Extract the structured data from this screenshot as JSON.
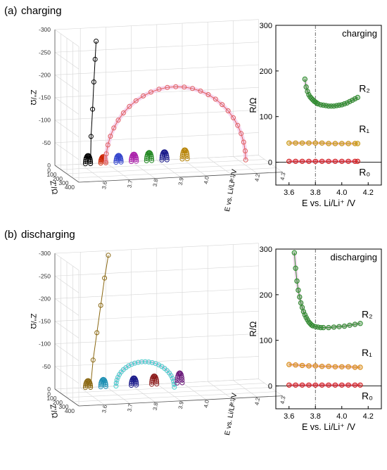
{
  "chart_data": [
    {
      "panel": "(a)",
      "title": "charging",
      "type": "scatter",
      "projection": "3d",
      "axes": {
        "x": {
          "label": "Z'/Ω",
          "ticks": [
            "0",
            "100",
            "200",
            "300",
            "400"
          ]
        },
        "y": {
          "label": "E vs. Li/Li⁺ /V",
          "ticks": [
            "3.6",
            "3.7",
            "3.8",
            "3.9",
            "4.0",
            "4.1",
            "4.2",
            "4.3"
          ]
        },
        "z": {
          "label": "Z''/Ω",
          "ticks": [
            "0",
            "-50",
            "-100",
            "-150",
            "-200",
            "-250",
            "-300"
          ]
        }
      },
      "series": [
        {
          "color": "#000000",
          "E": 3.62,
          "arc_width": 20,
          "arc_height": 18,
          "tail": [
            [
              22,
              -60
            ],
            [
              28,
              -120
            ],
            [
              33,
              -180
            ],
            [
              38,
              -230
            ],
            [
              42,
              -270
            ]
          ]
        },
        {
          "color": "#cc2200",
          "E": 3.68,
          "arc_width": 20,
          "arc_height": 14
        },
        {
          "color": "#3344cc",
          "E": 3.74,
          "arc_width": 20,
          "arc_height": 15
        },
        {
          "color": "#aa22aa",
          "E": 3.8,
          "arc_width": 20,
          "arc_height": 16
        },
        {
          "color": "#228822",
          "E": 3.86,
          "arc_width": 20,
          "arc_height": 18
        },
        {
          "color": "#1a1a8a",
          "E": 3.92,
          "arc_width": 20,
          "arc_height": 18
        },
        {
          "color": "#b8860b",
          "E": 4.0,
          "arc_width": 20,
          "arc_height": 20
        },
        {
          "color": "#e06060",
          "E": 3.7,
          "arc_width": 330,
          "arc_height": 165,
          "highlight": true
        }
      ]
    },
    {
      "panel": "",
      "title": "charging",
      "type": "scatter",
      "xlabel": "E vs. Li/Li⁺ /V",
      "ylabel": "R/Ω",
      "xlim": [
        3.5,
        4.3
      ],
      "ylim": [
        -50,
        300
      ],
      "xticks": [
        "3.6",
        "3.8",
        "4.0",
        "4.2"
      ],
      "yticks": [
        "0",
        "100",
        "200",
        "300"
      ],
      "vline": 3.8,
      "series": [
        {
          "name": "R₂",
          "color": "#2e8b2e",
          "x": [
            3.72,
            3.73,
            3.74,
            3.75,
            3.76,
            3.77,
            3.78,
            3.79,
            3.8,
            3.81,
            3.82,
            3.84,
            3.86,
            3.88,
            3.9,
            3.92,
            3.94,
            3.96,
            3.98,
            4.0,
            4.02,
            4.04,
            4.06,
            4.08,
            4.1,
            4.12
          ],
          "y": [
            182,
            165,
            155,
            148,
            143,
            140,
            137,
            134,
            132,
            130,
            128,
            126,
            125,
            124,
            123,
            123,
            123,
            124,
            125,
            126,
            128,
            130,
            133,
            136,
            139,
            142
          ]
        },
        {
          "name": "R₁",
          "color": "#c8960a",
          "x": [
            3.6,
            3.65,
            3.7,
            3.75,
            3.8,
            3.85,
            3.9,
            3.95,
            4.0,
            4.05,
            4.1,
            4.12
          ],
          "y": [
            42,
            42,
            42,
            42,
            42,
            42,
            41,
            41,
            41,
            41,
            41,
            41
          ]
        },
        {
          "name": "R₀",
          "color": "#d42020",
          "x": [
            3.6,
            3.65,
            3.7,
            3.75,
            3.8,
            3.85,
            3.9,
            3.95,
            4.0,
            4.05,
            4.1,
            4.12
          ],
          "y": [
            2,
            2,
            2,
            2,
            2,
            2,
            2,
            2,
            2,
            2,
            2,
            2
          ]
        }
      ]
    },
    {
      "panel": "(b)",
      "title": "discharging",
      "type": "scatter",
      "projection": "3d",
      "axes": {
        "x": {
          "label": "Z'/Ω",
          "ticks": [
            "0",
            "100",
            "200",
            "300",
            "400"
          ]
        },
        "y": {
          "label": "E vs. Li/Li⁺ /V",
          "ticks": [
            "3.6",
            "3.7",
            "3.8",
            "3.9",
            "4.0",
            "4.1",
            "4.2",
            "4.3"
          ]
        },
        "z": {
          "label": "Z''/Ω",
          "ticks": [
            "0",
            "-50",
            "-100",
            "-150",
            "-200",
            "-250",
            "-300"
          ]
        }
      },
      "series": [
        {
          "color": "#8b6914",
          "E": 3.62,
          "arc_width": 20,
          "arc_height": 15,
          "tail": [
            [
              30,
              -60
            ],
            [
              45,
              -120
            ],
            [
              60,
              -180
            ],
            [
              75,
              -240
            ],
            [
              90,
              -290
            ]
          ]
        },
        {
          "color": "#1e90b4",
          "E": 3.68,
          "arc_width": 20,
          "arc_height": 16
        },
        {
          "color": "#48d1cc",
          "E": 3.74,
          "arc_width": 130,
          "arc_height": 55,
          "highlight": true
        },
        {
          "color": "#1a1a8a",
          "E": 3.8,
          "arc_width": 20,
          "arc_height": 16
        },
        {
          "color": "#8b1a1a",
          "E": 3.88,
          "arc_width": 20,
          "arc_height": 18
        },
        {
          "color": "#6a1a7a",
          "E": 3.98,
          "arc_width": 20,
          "arc_height": 22
        }
      ]
    },
    {
      "panel": "",
      "title": "discharging",
      "type": "scatter",
      "xlabel": "E vs. Li/Li⁺ /V",
      "ylabel": "R/Ω",
      "xlim": [
        3.5,
        4.3
      ],
      "ylim": [
        -50,
        300
      ],
      "xticks": [
        "3.6",
        "3.8",
        "4.0",
        "4.2"
      ],
      "yticks": [
        "0",
        "100",
        "200",
        "300"
      ],
      "vline": 3.8,
      "series": [
        {
          "name": "R₂",
          "color": "#2e8b2e",
          "x": [
            3.64,
            3.65,
            3.66,
            3.67,
            3.68,
            3.69,
            3.7,
            3.71,
            3.72,
            3.73,
            3.74,
            3.75,
            3.76,
            3.77,
            3.78,
            3.8,
            3.82,
            3.84,
            3.86,
            3.9,
            3.94,
            3.98,
            4.02,
            4.06,
            4.1,
            4.14
          ],
          "y": [
            292,
            258,
            230,
            210,
            195,
            182,
            172,
            163,
            156,
            150,
            145,
            140,
            137,
            134,
            132,
            130,
            129,
            128,
            128,
            128,
            129,
            130,
            131,
            133,
            135,
            137
          ]
        },
        {
          "name": "R₁",
          "color": "#d88a10",
          "x": [
            3.6,
            3.65,
            3.7,
            3.75,
            3.8,
            3.85,
            3.9,
            3.95,
            4.0,
            4.05,
            4.1,
            4.14
          ],
          "y": [
            47,
            46,
            45,
            44,
            44,
            43,
            43,
            42,
            42,
            42,
            41,
            41
          ]
        },
        {
          "name": "R₀",
          "color": "#d42020",
          "x": [
            3.6,
            3.65,
            3.7,
            3.75,
            3.8,
            3.85,
            3.9,
            3.95,
            4.0,
            4.05,
            4.1,
            4.14
          ],
          "y": [
            2,
            2,
            2,
            2,
            2,
            2,
            2,
            2,
            2,
            2,
            2,
            2
          ]
        }
      ]
    }
  ]
}
